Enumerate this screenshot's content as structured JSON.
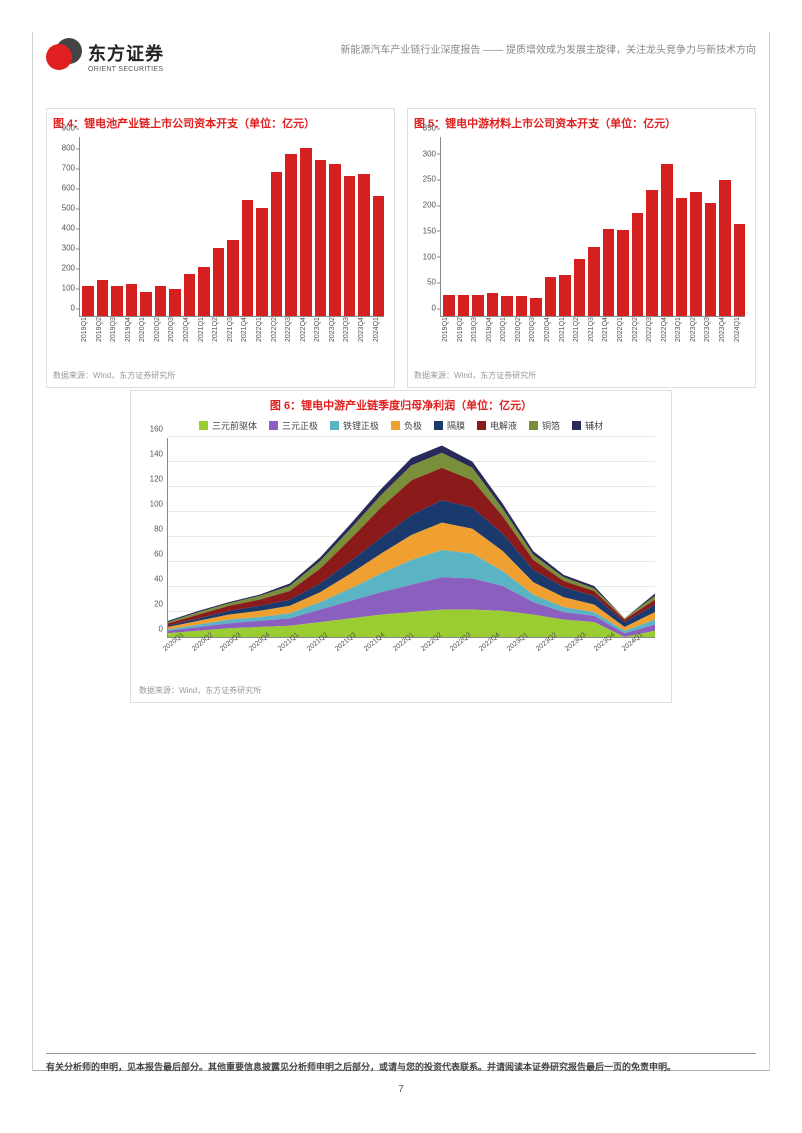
{
  "header": {
    "brand_cn": "东方证券",
    "brand_en": "ORIENT SECURITIES",
    "subtitle": "新能源汽车产业链行业深度报告 —— 提质增效成为发展主旋律，关注龙头竞争力与新技术方向"
  },
  "chart4": {
    "type": "bar",
    "title": "图 4：锂电池产业链上市公司资本开支（单位：亿元）",
    "ylim": [
      0,
      900
    ],
    "ytick_step": 100,
    "bar_color": "#d62020",
    "axis_color": "#888888",
    "label_fontsize": 8,
    "categories": [
      "2019Q1",
      "2019Q2",
      "2019Q3",
      "2019Q4",
      "2020Q1",
      "2020Q2",
      "2020Q3",
      "2020Q4",
      "2021Q1",
      "2021Q2",
      "2021Q3",
      "2021Q4",
      "2022Q1",
      "2022Q2",
      "2022Q3",
      "2022Q4",
      "2023Q1",
      "2023Q2",
      "2023Q3",
      "2023Q4",
      "2024Q1"
    ],
    "values": [
      150,
      180,
      150,
      160,
      120,
      150,
      135,
      210,
      245,
      340,
      380,
      580,
      540,
      720,
      810,
      840,
      780,
      760,
      700,
      710,
      600
    ],
    "source": "数据来源：Wind，东方证券研究所"
  },
  "chart5": {
    "type": "bar",
    "title": "图 5：锂电中游材料上市公司资本开支（单位：亿元）",
    "ylim": [
      0,
      350
    ],
    "ytick_step": 50,
    "bar_color": "#d62020",
    "axis_color": "#888888",
    "label_fontsize": 8,
    "categories": [
      "2019Q1",
      "2019Q2",
      "2019Q3",
      "2019Q4",
      "2020Q1",
      "2020Q2",
      "2020Q3",
      "2020Q4",
      "2021Q1",
      "2021Q2",
      "2021Q3",
      "2021Q4",
      "2022Q1",
      "2022Q2",
      "2022Q3",
      "2022Q4",
      "2023Q1",
      "2023Q2",
      "2023Q3",
      "2023Q4",
      "2024Q1"
    ],
    "values": [
      40,
      40,
      40,
      45,
      38,
      38,
      35,
      75,
      80,
      110,
      135,
      170,
      168,
      200,
      245,
      296,
      230,
      242,
      220,
      265,
      178
    ],
    "source": "数据来源：Wind，东方证券研究所"
  },
  "chart6": {
    "type": "area",
    "title": "图 6：锂电中游产业链季度归母净利润（单位：亿元）",
    "ylim": [
      0,
      160
    ],
    "ytick_step": 20,
    "grid_color": "#e8e8e8",
    "axis_color": "#888888",
    "label_fontsize": 8,
    "categories": [
      "2020Q1",
      "2020Q2",
      "2020Q3",
      "2020Q4",
      "2021Q1",
      "2021Q2",
      "2021Q3",
      "2021Q4",
      "2022Q1",
      "2022Q2",
      "2022Q3",
      "2022Q4",
      "2023Q1",
      "2023Q2",
      "2023Q3",
      "2023Q4",
      "2024Q1"
    ],
    "legend_labels": [
      "三元前驱体",
      "三元正极",
      "铁锂正极",
      "负极",
      "隔膜",
      "电解液",
      "铜箔",
      "辅材"
    ],
    "series_colors": [
      "#9acd32",
      "#8b5fbf",
      "#5ab4c4",
      "#f0a030",
      "#1a3a6e",
      "#8b1a1a",
      "#7a8f3a",
      "#2a2a5a"
    ],
    "series": {
      "三元前驱体": [
        3,
        5,
        7,
        8,
        9,
        12,
        15,
        18,
        20,
        22,
        22,
        21,
        18,
        14,
        12,
        -5,
        5
      ],
      "三元正极": [
        2,
        3,
        4,
        5,
        6,
        10,
        14,
        18,
        22,
        26,
        25,
        20,
        10,
        6,
        5,
        3,
        5
      ],
      "铁锂正极": [
        1,
        2,
        3,
        3,
        4,
        6,
        10,
        15,
        20,
        22,
        20,
        12,
        6,
        4,
        3,
        2,
        4
      ],
      "负极": [
        2,
        3,
        4,
        5,
        6,
        8,
        12,
        16,
        20,
        22,
        20,
        16,
        10,
        8,
        6,
        3,
        6
      ],
      "隔膜": [
        1,
        2,
        3,
        4,
        5,
        7,
        10,
        13,
        16,
        18,
        17,
        14,
        10,
        8,
        7,
        4,
        6
      ],
      "电解液": [
        2,
        3,
        4,
        5,
        7,
        12,
        18,
        24,
        28,
        26,
        22,
        14,
        8,
        5,
        4,
        2,
        4
      ],
      "铜箔": [
        1,
        2,
        2,
        3,
        4,
        6,
        8,
        10,
        12,
        12,
        10,
        6,
        4,
        3,
        2,
        1,
        3
      ],
      "辅材": [
        1,
        1,
        1,
        1,
        2,
        3,
        4,
        5,
        6,
        6,
        5,
        4,
        3,
        2,
        2,
        0,
        2
      ]
    },
    "source": "数据来源：Wind，东方证券研究所"
  },
  "footer": {
    "disclaimer": "有关分析师的申明，见本报告最后部分。其他重要信息披露见分析师申明之后部分，或请与您的投资代表联系。并请阅读本证券研究报告最后一页的免责申明。",
    "page_number": "7"
  }
}
